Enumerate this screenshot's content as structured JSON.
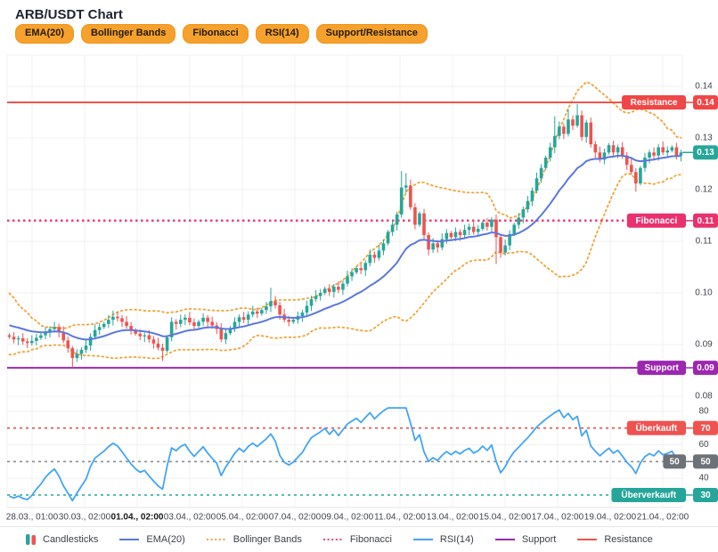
{
  "header": {
    "title": "ARB/USDT Chart",
    "buttons": [
      "EMA(20)",
      "Bollinger Bands",
      "Fibonacci",
      "RSI(14)",
      "Support/Resistance"
    ],
    "button_bg": "#f6a12d",
    "button_border": "#ee9519",
    "button_text": "#231a09"
  },
  "legend": {
    "items": [
      {
        "label": "Candlesticks",
        "type": "candles",
        "colors": [
          "#26a69a",
          "#ef5350"
        ]
      },
      {
        "label": "EMA(20)",
        "type": "line",
        "color": "#5b77e0"
      },
      {
        "label": "Bollinger Bands",
        "type": "dotted",
        "color": "#f2a437"
      },
      {
        "label": "Fibonacci",
        "type": "dotted",
        "color": "#ee3e74"
      },
      {
        "label": "RSI(14)",
        "type": "line",
        "color": "#42a5f5"
      },
      {
        "label": "Support",
        "type": "line",
        "color": "#9c27b0"
      },
      {
        "label": "Resistance",
        "type": "line",
        "color": "#f0544c"
      }
    ],
    "text_color": "#3d4248"
  },
  "chart_data": {
    "type": "candlestick",
    "symbol": "ARB/USDT",
    "x_ticks": [
      "28.03., 01:00",
      "30.03., 02:00",
      "01.04., 02:00",
      "03.04., 02:00",
      "05.04., 02:00",
      "07.04., 02:00",
      "09.04., 02:00",
      "11.04., 02:00",
      "13.04., 02:00",
      "15.04., 02:00",
      "17.04., 02:00",
      "19.04., 02:00",
      "21.04., 02:00"
    ],
    "bold_x_tick_index": 2,
    "price_ticks": [
      "0.14",
      "0.13",
      "0.12",
      "0.11",
      "0.10",
      "0.09",
      "0.08"
    ],
    "rsi_ticks": [
      "80",
      "60",
      "40"
    ],
    "price_range_top": 0.146,
    "price_range_bottom": 0.079,
    "rsi_range": [
      24,
      86
    ],
    "indicators": {
      "ema_period": 20,
      "bb_period": 20,
      "bb_stddev": 2,
      "rsi_period": 14
    },
    "series": {
      "pre_closes": [
        0.1008,
        0.0996,
        0.1002,
        0.0982,
        0.0968,
        0.0975,
        0.0952,
        0.0958,
        0.094,
        0.093,
        0.0938,
        0.0922,
        0.0928,
        0.0914,
        0.092,
        0.0908,
        0.0915,
        0.0905,
        0.0912,
        0.0918
      ],
      "closes": [
        0.0915,
        0.091,
        0.0912,
        0.0906,
        0.0903,
        0.0907,
        0.0913,
        0.0918,
        0.0925,
        0.093,
        0.0934,
        0.0924,
        0.0908,
        0.0893,
        0.0874,
        0.0882,
        0.089,
        0.0898,
        0.0915,
        0.0928,
        0.0934,
        0.094,
        0.0948,
        0.0954,
        0.0951,
        0.0944,
        0.0936,
        0.0928,
        0.0921,
        0.0916,
        0.0918,
        0.091,
        0.0902,
        0.0894,
        0.0888,
        0.0914,
        0.0944,
        0.094,
        0.0948,
        0.0952,
        0.0943,
        0.0936,
        0.0944,
        0.0952,
        0.0944,
        0.0937,
        0.093,
        0.091,
        0.0922,
        0.0932,
        0.0944,
        0.0953,
        0.0948,
        0.0958,
        0.0964,
        0.096,
        0.0967,
        0.0974,
        0.0984,
        0.0976,
        0.0958,
        0.0948,
        0.0944,
        0.0948,
        0.0955,
        0.0962,
        0.0975,
        0.0988,
        0.0994,
        0.1,
        0.1008,
        0.1002,
        0.1012,
        0.1006,
        0.1018,
        0.1032,
        0.104,
        0.1048,
        0.1044,
        0.1058,
        0.1074,
        0.1068,
        0.1082,
        0.1096,
        0.1118,
        0.1132,
        0.1152,
        0.1204,
        0.1208,
        0.1166,
        0.1132,
        0.1154,
        0.1112,
        0.1084,
        0.1096,
        0.1088,
        0.1104,
        0.1116,
        0.1108,
        0.1118,
        0.1112,
        0.1122,
        0.1128,
        0.1118,
        0.1124,
        0.1136,
        0.1128,
        0.1142,
        0.1108,
        0.1078,
        0.1092,
        0.1114,
        0.1132,
        0.1146,
        0.1162,
        0.1178,
        0.1198,
        0.1222,
        0.1242,
        0.1262,
        0.1282,
        0.1304,
        0.1322,
        0.1308,
        0.1336,
        0.1324,
        0.1344,
        0.1302,
        0.133,
        0.1288,
        0.1272,
        0.1258,
        0.1272,
        0.1286,
        0.1272,
        0.1282,
        0.1266,
        0.1248,
        0.1234,
        0.1212,
        0.1242,
        0.1262,
        0.1272,
        0.1266,
        0.1282,
        0.1272,
        0.1276,
        0.1282,
        0.1266,
        0.1272
      ],
      "wick_overrides": {
        "14": {
          "l": 0.0855
        },
        "23": {
          "h": 0.0966
        },
        "34": {
          "l": 0.0868
        },
        "58": {
          "h": 0.101
        },
        "87": {
          "h": 0.1236
        },
        "88": {
          "h": 0.1232
        },
        "108": {
          "l": 0.1056
        },
        "121": {
          "h": 0.1342
        },
        "124": {
          "h": 0.1356
        },
        "126": {
          "h": 0.1366
        },
        "139": {
          "l": 0.1196
        }
      }
    },
    "annotations": {
      "resistance": {
        "label": "Resistance",
        "value": "0.14",
        "price": 0.1369
      },
      "fibonacci": {
        "label": "Fibonacci",
        "value": "0.11",
        "price": 0.114
      },
      "support": {
        "label": "Support",
        "value": "0.09",
        "price": 0.0855
      },
      "current_price": {
        "value": "0.13",
        "price": 0.1272
      },
      "rsi_overbought": {
        "label": "Überkauft",
        "value": "70",
        "level": 70
      },
      "rsi_middle": {
        "label": "50",
        "value": "50",
        "level": 50
      },
      "rsi_oversold": {
        "label": "Überverkauft",
        "value": "30",
        "level": 30
      }
    },
    "colors": {
      "up": "#26a69a",
      "down": "#ef5350",
      "ema": "#5b77e0",
      "bollinger": "#f2a437",
      "fibonacci_line": "#ee3e74",
      "fibonacci_box": "#e8316d",
      "support": "#9c27b0",
      "resistance_line": "#f0544c",
      "resistance_box": "#ef4745",
      "rsi": "#42a5f5",
      "overbought": "#ef5350",
      "mid_line": "#8a8d93",
      "mid_box": "#6d7178",
      "oversold": "#26a69a",
      "current_price_box": "#26a69a",
      "grid": "#f0f0f1",
      "panel_border": "#e4e4e7",
      "axis_text": "#3f444b",
      "x_text": "#3f444b",
      "bold_x_text": "#17181a"
    }
  }
}
